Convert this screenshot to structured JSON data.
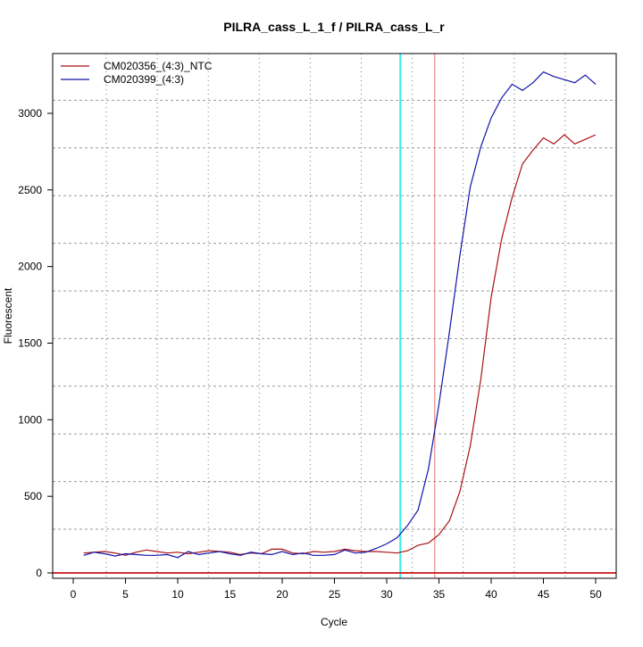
{
  "chart_data": {
    "type": "line",
    "title": "PILRA_cass_L_1_f / PILRA_cass_L_r",
    "xlabel": "Cycle",
    "ylabel": "Fluorescent",
    "xlim": [
      -2,
      52
    ],
    "ylim": [
      -20,
      3430
    ],
    "xticks": [
      0,
      5,
      10,
      15,
      20,
      25,
      30,
      35,
      40,
      45,
      50
    ],
    "yticks": [
      0,
      500,
      1000,
      1500,
      2000,
      2500,
      3000
    ],
    "grid": true,
    "legend_position": "top-left",
    "threshold_lines": {
      "horizontal": {
        "value": 0,
        "color": "#cc3333"
      },
      "vertical_cyan": {
        "value": 31.3,
        "color": "#33eeee"
      },
      "vertical_red": {
        "value": 34.6,
        "color": "#e07070"
      }
    },
    "x": [
      1,
      2,
      3,
      4,
      5,
      6,
      7,
      8,
      9,
      10,
      11,
      12,
      13,
      14,
      15,
      16,
      17,
      18,
      19,
      20,
      21,
      22,
      23,
      24,
      25,
      26,
      27,
      28,
      29,
      30,
      31,
      32,
      33,
      34,
      35,
      36,
      37,
      38,
      39,
      40,
      41,
      42,
      43,
      44,
      45,
      46,
      47,
      48,
      49,
      50
    ],
    "series": [
      {
        "name": "CM020356_(4:3)_NTC",
        "color": "#aa1111",
        "values": [
          130,
          135,
          140,
          130,
          115,
          135,
          150,
          140,
          130,
          135,
          125,
          135,
          145,
          140,
          135,
          120,
          130,
          125,
          155,
          155,
          130,
          125,
          140,
          135,
          140,
          155,
          145,
          140,
          140,
          135,
          130,
          145,
          180,
          195,
          250,
          340,
          530,
          830,
          1260,
          1800,
          2180,
          2450,
          2670,
          2760,
          2840,
          2800,
          2860,
          2800,
          2830,
          2860
        ]
      },
      {
        "name": "CM020399_(4:3)",
        "color": "#1111aa",
        "values": [
          115,
          135,
          125,
          110,
          125,
          120,
          115,
          115,
          120,
          100,
          140,
          120,
          130,
          140,
          125,
          115,
          135,
          125,
          120,
          140,
          120,
          130,
          115,
          115,
          120,
          150,
          130,
          135,
          160,
          190,
          230,
          310,
          410,
          680,
          1100,
          1570,
          2070,
          2520,
          2780,
          2970,
          3100,
          3190,
          3150,
          3200,
          3270,
          3240,
          3220,
          3200,
          3250,
          3190
        ]
      }
    ]
  }
}
